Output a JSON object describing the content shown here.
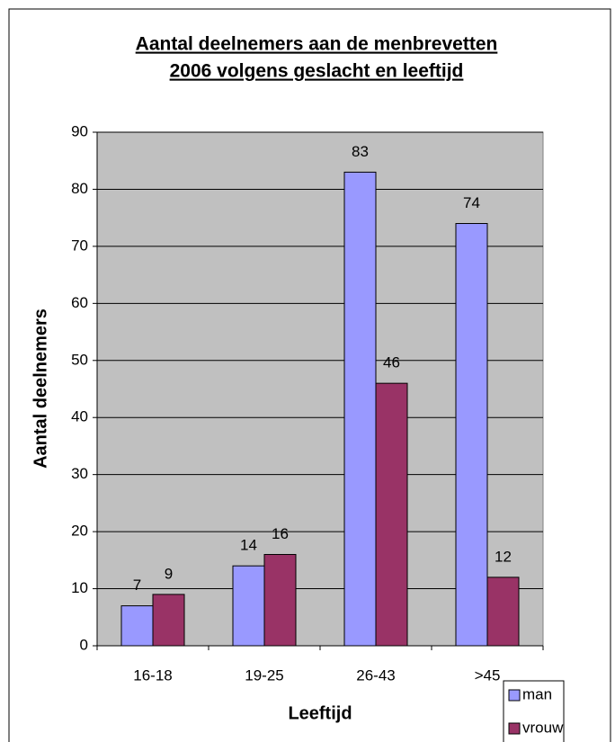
{
  "chart_data": {
    "type": "bar",
    "title": [
      "Aantal deelnemers aan de menbrevetten",
      "2006 volgens geslacht en leeftijd"
    ],
    "x_label": "Leeftijd",
    "y_label": "Aantal deelnemers",
    "categories": [
      "16-18",
      "19-25",
      "26-43",
      ">45"
    ],
    "series": [
      {
        "name": "man",
        "color": "#9999ff",
        "values": [
          7,
          14,
          83,
          74
        ]
      },
      {
        "name": "vrouw",
        "color": "#993366",
        "values": [
          9,
          16,
          46,
          12
        ]
      }
    ],
    "ylim": [
      0,
      90
    ],
    "yticks": [
      0,
      10,
      20,
      30,
      40,
      50,
      60,
      70,
      80,
      90
    ],
    "grid": true,
    "legend": "bottom-right",
    "plot_background": "#c0c0c0"
  }
}
